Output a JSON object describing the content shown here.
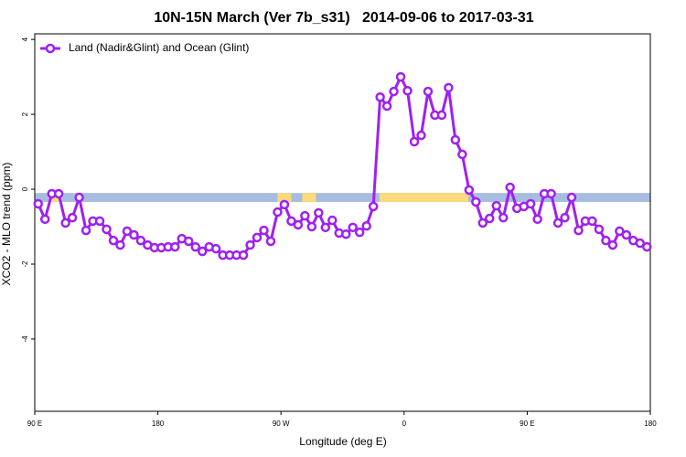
{
  "chart_data": {
    "type": "line",
    "title": "10N-15N March (Ver 7b_s31)   2014-09-06 to 2017-03-31",
    "xlabel": "Longitude (deg E)",
    "ylabel": "XCO2 - MLO trend (ppm)",
    "xlim": [
      90,
      540
    ],
    "ylim": [
      -5.93,
      4.15
    ],
    "xticks": [
      {
        "value": 90,
        "label": "90 E"
      },
      180,
      {
        "value": 270,
        "label": "90 W"
      },
      {
        "value": 360,
        "label": "0"
      },
      {
        "value": 450,
        "label": "90 E"
      },
      {
        "value": 540,
        "label": "180"
      }
    ],
    "yticks": [
      -4,
      -2,
      0,
      2,
      4
    ],
    "legend": "top-left",
    "band": {
      "range": [
        -0.34,
        -0.1
      ],
      "color": "#a7bde0"
    },
    "highlight_spans": {
      "color": "#ffd97a",
      "spans": [
        [
          101,
          110
        ],
        [
          267.5,
          277.5
        ],
        [
          285.5,
          295.5
        ],
        [
          342,
          407
        ]
      ]
    },
    "series": [
      {
        "name": "Land (Nadir&Glint) and Ocean (Glint)",
        "color": "#a020f0",
        "x": [
          92.5,
          97.5,
          102.5,
          107.5,
          112.5,
          117.5,
          122.5,
          127.5,
          132.5,
          137.5,
          142.5,
          147.5,
          152.5,
          157.5,
          162.5,
          167.5,
          172.5,
          177.5,
          182.5,
          187.5,
          192.5,
          197.5,
          202.5,
          207.5,
          212.5,
          217.5,
          222.5,
          227.5,
          232.5,
          237.5,
          242.5,
          247.5,
          252.5,
          257.5,
          262.5,
          267.5,
          272.5,
          277.5,
          282.5,
          287.5,
          292.5,
          297.5,
          302.5,
          307.5,
          312.5,
          317.5,
          322.5,
          327.5,
          332.5,
          337.5,
          342.5,
          347.5,
          352.5,
          357.5,
          362.5,
          367.5,
          372.5,
          377.5,
          382.5,
          387.5,
          392.5,
          397.5,
          402.5,
          407.5,
          412.5,
          417.5,
          422.5,
          427.5,
          432.5,
          437.5,
          442.5,
          447.5,
          452.5,
          457.5,
          462.5,
          467.5,
          472.5,
          477.5,
          482.5,
          487.5,
          492.5,
          497.5,
          502.5,
          507.5,
          512.5,
          517.5,
          522.5,
          527.5,
          532.5,
          537.5
        ],
        "values": [
          -0.39,
          -0.8,
          -0.12,
          -0.12,
          -0.9,
          -0.76,
          -0.22,
          -1.1,
          -0.85,
          -0.85,
          -1.07,
          -1.37,
          -1.49,
          -1.12,
          -1.22,
          -1.37,
          -1.49,
          -1.56,
          -1.56,
          -1.54,
          -1.54,
          -1.32,
          -1.39,
          -1.54,
          -1.66,
          -1.54,
          -1.59,
          -1.76,
          -1.76,
          -1.76,
          -1.76,
          -1.49,
          -1.29,
          -1.1,
          -1.39,
          -0.61,
          -0.41,
          -0.85,
          -0.95,
          -0.71,
          -1.0,
          -0.63,
          -1.02,
          -0.83,
          -1.17,
          -1.2,
          -1.02,
          -1.15,
          -0.98,
          -0.46,
          2.46,
          2.22,
          2.61,
          3.0,
          2.63,
          1.27,
          1.44,
          2.61,
          1.98,
          1.98,
          2.71,
          1.32,
          0.93,
          -0.02,
          -0.34,
          -0.9,
          -0.78,
          -0.44,
          -0.76,
          0.05,
          -0.51,
          -0.46,
          -0.39,
          -0.8,
          -0.12,
          -0.12,
          -0.9,
          -0.76,
          -0.22,
          -1.1,
          -0.85,
          -0.85,
          -1.07,
          -1.37,
          -1.49,
          -1.12,
          -1.22,
          -1.37,
          -1.44,
          -1.54
        ]
      }
    ]
  }
}
